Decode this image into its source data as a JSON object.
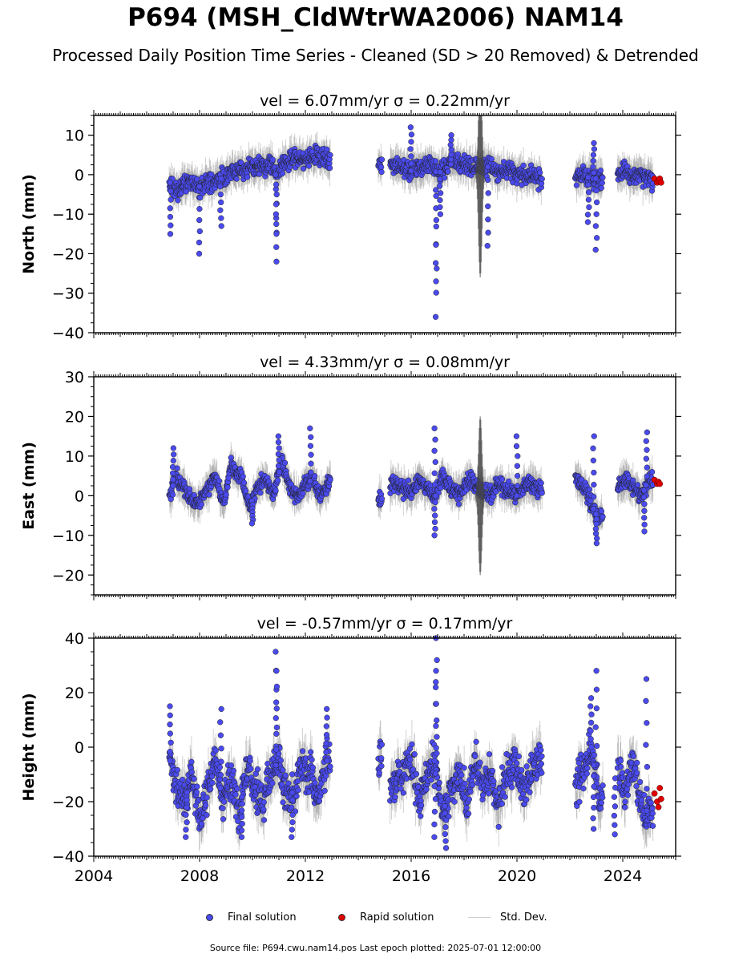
{
  "title": "P694 (MSH_CldWtrWA2006) NAM14",
  "subtitle": "Processed Daily Position Time Series - Cleaned (SD > 20 Removed) & Detrended",
  "legend": {
    "final": "Final solution",
    "rapid": "Rapid solution",
    "std": "Std. Dev."
  },
  "footer": "Source file: P694.cwu.nam14.pos  Last epoch plotted: 2025-07-01 12:00:00",
  "colors": {
    "final": "#4a4aee",
    "rapid": "#e00000",
    "std": "#9a9a9a"
  },
  "chart_data": [
    {
      "type": "scatter",
      "title": "vel = 6.07mm/yr   σ = 0.22mm/yr",
      "ylabel": "North (mm)",
      "xlim": [
        2004,
        2026
      ],
      "ylim": [
        -40,
        15
      ],
      "yticks": [
        10,
        0,
        -10,
        -20,
        -30,
        -40
      ],
      "ytick_labels": [
        "10",
        "0",
        "−10",
        "−20",
        "−30",
        "−40"
      ],
      "series": [
        {
          "name": "Final solution",
          "x": [
            2006.9,
            2007.1,
            2007.3,
            2007.6,
            2008.0,
            2008.4,
            2008.8,
            2009.1,
            2009.5,
            2009.9,
            2010.3,
            2010.7,
            2010.9,
            2011.2,
            2011.6,
            2012.0,
            2012.4,
            2012.8,
            2014.8,
            2015.3,
            2015.7,
            2016.0,
            2016.4,
            2016.8,
            2017.0,
            2017.3,
            2017.6,
            2017.9,
            2018.3,
            2018.7,
            2019.0,
            2019.4,
            2019.8,
            2020.2,
            2020.6,
            2020.9,
            2022.2,
            2022.5,
            2022.8,
            2023.0,
            2023.3,
            2023.8,
            2024.0,
            2024.3,
            2024.6,
            2024.9,
            2025.1
          ],
          "y": [
            -2,
            -4,
            -3,
            -2,
            -3,
            -2,
            -1,
            0,
            1,
            2,
            2,
            3,
            0,
            3,
            4,
            4,
            5,
            4,
            3,
            3,
            2,
            1,
            2,
            3,
            0,
            2,
            3,
            3,
            2,
            2,
            2,
            1,
            1,
            0,
            0,
            -1,
            -1,
            0,
            -1,
            -1,
            -2,
            0,
            1,
            0,
            0,
            -1,
            -1
          ]
        },
        {
          "name": "Rapid solution",
          "x": [
            2025.2,
            2025.3,
            2025.35,
            2025.4,
            2025.45
          ],
          "y": [
            -1,
            -2,
            -1.5,
            -1,
            -2
          ]
        }
      ],
      "excursions": [
        {
          "x": 2006.9,
          "y": -15
        },
        {
          "x": 2008.0,
          "y": -20
        },
        {
          "x": 2008.8,
          "y": -13
        },
        {
          "x": 2010.9,
          "y": -22
        },
        {
          "x": 2010.9,
          "y": -15
        },
        {
          "x": 2016.95,
          "y": -36
        },
        {
          "x": 2016.95,
          "y": -27
        },
        {
          "x": 2017.1,
          "y": -10
        },
        {
          "x": 2018.9,
          "y": -18
        },
        {
          "x": 2016.0,
          "y": 12
        },
        {
          "x": 2017.5,
          "y": 10
        },
        {
          "x": 2022.9,
          "y": 8
        },
        {
          "x": 2023.0,
          "y": -19
        },
        {
          "x": 2022.7,
          "y": -12
        }
      ]
    },
    {
      "type": "scatter",
      "title": "vel = 4.33mm/yr   σ = 0.08mm/yr",
      "ylabel": "East (mm)",
      "xlim": [
        2004,
        2026
      ],
      "ylim": [
        -25,
        30
      ],
      "yticks": [
        30,
        20,
        10,
        0,
        -10,
        -20
      ],
      "ytick_labels": [
        "30",
        "20",
        "10",
        "0",
        "−10",
        "−20"
      ],
      "series": [
        {
          "name": "Final solution",
          "x": [
            2006.9,
            2007.1,
            2007.4,
            2007.7,
            2008.0,
            2008.3,
            2008.6,
            2008.9,
            2009.2,
            2009.6,
            2009.9,
            2010.2,
            2010.5,
            2010.8,
            2011.1,
            2011.4,
            2011.7,
            2012.0,
            2012.3,
            2012.6,
            2012.9,
            2014.8,
            2015.3,
            2015.6,
            2016.0,
            2016.3,
            2016.6,
            2016.9,
            2017.2,
            2017.5,
            2017.8,
            2018.2,
            2018.6,
            2019.0,
            2019.3,
            2019.7,
            2020.0,
            2020.4,
            2020.8,
            2022.2,
            2022.5,
            2022.8,
            2023.1,
            2023.8,
            2024.1,
            2024.4,
            2024.7,
            2025.0
          ],
          "y": [
            0,
            5,
            2,
            -1,
            -2,
            2,
            5,
            -2,
            8,
            4,
            -3,
            2,
            4,
            0,
            9,
            2,
            -1,
            3,
            4,
            0,
            4,
            -1,
            3,
            2,
            1,
            4,
            2,
            0,
            5,
            2,
            0,
            4,
            2,
            0,
            3,
            1,
            0,
            3,
            2,
            5,
            2,
            -2,
            -6,
            2,
            4,
            2,
            0,
            4
          ]
        },
        {
          "name": "Rapid solution",
          "x": [
            2025.2,
            2025.3,
            2025.35,
            2025.4
          ],
          "y": [
            4,
            3,
            3.5,
            3
          ]
        }
      ],
      "excursions": [
        {
          "x": 2007.0,
          "y": 12
        },
        {
          "x": 2011.0,
          "y": 15
        },
        {
          "x": 2012.2,
          "y": 17
        },
        {
          "x": 2016.9,
          "y": 17
        },
        {
          "x": 2016.9,
          "y": -10
        },
        {
          "x": 2020.0,
          "y": 15
        },
        {
          "x": 2022.9,
          "y": 15
        },
        {
          "x": 2023.0,
          "y": -12
        },
        {
          "x": 2024.9,
          "y": 16
        },
        {
          "x": 2024.8,
          "y": -9
        },
        {
          "x": 2010.0,
          "y": -7
        }
      ]
    },
    {
      "type": "scatter",
      "title": "vel = -0.57mm/yr   σ = 0.17mm/yr",
      "ylabel": "Height (mm)",
      "xlim": [
        2004,
        2026
      ],
      "ylim": [
        -40,
        40
      ],
      "yticks": [
        40,
        20,
        0,
        -20,
        -40
      ],
      "ytick_labels": [
        "40",
        "20",
        "0",
        "−20",
        "−40"
      ],
      "xticks": [
        2004,
        2008,
        2012,
        2016,
        2020,
        2024
      ],
      "xtick_labels": [
        "2004",
        "2008",
        "2012",
        "2016",
        "2020",
        "2024"
      ],
      "series": [
        {
          "name": "Final solution",
          "x": [
            2006.9,
            2007.1,
            2007.4,
            2007.7,
            2008.0,
            2008.3,
            2008.6,
            2008.9,
            2009.2,
            2009.5,
            2009.8,
            2010.1,
            2010.4,
            2010.7,
            2011.0,
            2011.3,
            2011.6,
            2011.9,
            2012.2,
            2012.5,
            2012.8,
            2014.8,
            2015.3,
            2015.6,
            2016.0,
            2016.3,
            2016.6,
            2016.9,
            2017.2,
            2017.5,
            2017.8,
            2018.1,
            2018.4,
            2018.7,
            2019.0,
            2019.3,
            2019.6,
            2019.9,
            2020.2,
            2020.5,
            2020.8,
            2022.2,
            2022.5,
            2022.8,
            2023.1,
            2023.8,
            2024.1,
            2024.4,
            2024.7,
            2025.0
          ],
          "y": [
            -5,
            -15,
            -20,
            -10,
            -25,
            -15,
            -5,
            -20,
            -10,
            -25,
            -5,
            -15,
            -20,
            -10,
            -5,
            -20,
            -15,
            -5,
            -10,
            -20,
            -5,
            -5,
            -15,
            -10,
            -5,
            -20,
            -10,
            -5,
            -25,
            -15,
            -10,
            -20,
            -5,
            -15,
            -10,
            -20,
            -10,
            -5,
            -15,
            -10,
            -5,
            -15,
            -10,
            0,
            -20,
            -10,
            -15,
            -5,
            -20,
            -25
          ]
        },
        {
          "name": "Rapid solution",
          "x": [
            2025.2,
            2025.3,
            2025.35,
            2025.4,
            2025.45
          ],
          "y": [
            -17,
            -20,
            -22,
            -15,
            -19
          ]
        }
      ],
      "excursions": [
        {
          "x": 2006.9,
          "y": 15
        },
        {
          "x": 2008.8,
          "y": 14
        },
        {
          "x": 2010.9,
          "y": 35
        },
        {
          "x": 2010.9,
          "y": 28
        },
        {
          "x": 2012.8,
          "y": 14
        },
        {
          "x": 2016.95,
          "y": 40
        },
        {
          "x": 2016.95,
          "y": 28
        },
        {
          "x": 2017.3,
          "y": -37
        },
        {
          "x": 2023.0,
          "y": 28
        },
        {
          "x": 2022.8,
          "y": 18
        },
        {
          "x": 2024.9,
          "y": 25
        },
        {
          "x": 2022.9,
          "y": -30
        },
        {
          "x": 2007.5,
          "y": -33
        },
        {
          "x": 2009.6,
          "y": -33
        },
        {
          "x": 2011.5,
          "y": -33
        },
        {
          "x": 2016.9,
          "y": -33
        },
        {
          "x": 2023.7,
          "y": -32
        }
      ]
    }
  ]
}
